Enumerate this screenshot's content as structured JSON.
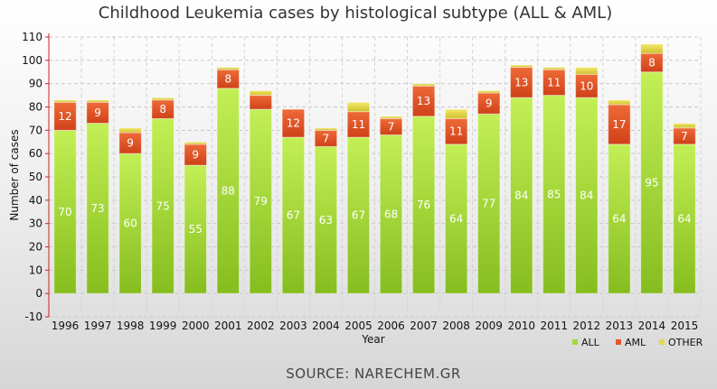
{
  "chart_data": {
    "type": "bar",
    "stacked": true,
    "title": "Childhood Leukemia cases by histological subtype (ALL & AML)",
    "xlabel": "Year",
    "ylabel": "Number of cases",
    "ylim": [
      -10,
      110
    ],
    "ytick_step": 10,
    "grid": true,
    "legend_position": "bottom-right",
    "categories": [
      "1996",
      "1997",
      "1998",
      "1999",
      "2000",
      "2001",
      "2002",
      "2003",
      "2004",
      "2005",
      "2006",
      "2007",
      "2008",
      "2009",
      "2010",
      "2011",
      "2012",
      "2013",
      "2014",
      "2015"
    ],
    "series": [
      {
        "name": "ALL",
        "color": "#a3d93a",
        "values": [
          70,
          73,
          60,
          75,
          55,
          88,
          79,
          67,
          63,
          67,
          68,
          76,
          64,
          77,
          84,
          85,
          84,
          64,
          95,
          64
        ],
        "show_labels": true
      },
      {
        "name": "AML",
        "color": "#e5562a",
        "values": [
          12,
          9,
          9,
          8,
          9,
          8,
          6,
          12,
          7,
          11,
          7,
          13,
          11,
          9,
          13,
          11,
          10,
          17,
          8,
          7
        ],
        "show_labels": true,
        "hidden_labels": [
          "2002"
        ]
      },
      {
        "name": "OTHER",
        "color": "#e6d84a",
        "values": [
          1,
          1,
          2,
          1,
          1,
          1,
          2,
          0,
          1,
          4,
          1,
          1,
          4,
          1,
          1,
          1,
          3,
          2,
          4,
          2
        ],
        "show_labels": false
      }
    ],
    "source": "SOURCE: NARECHEM.GR"
  }
}
